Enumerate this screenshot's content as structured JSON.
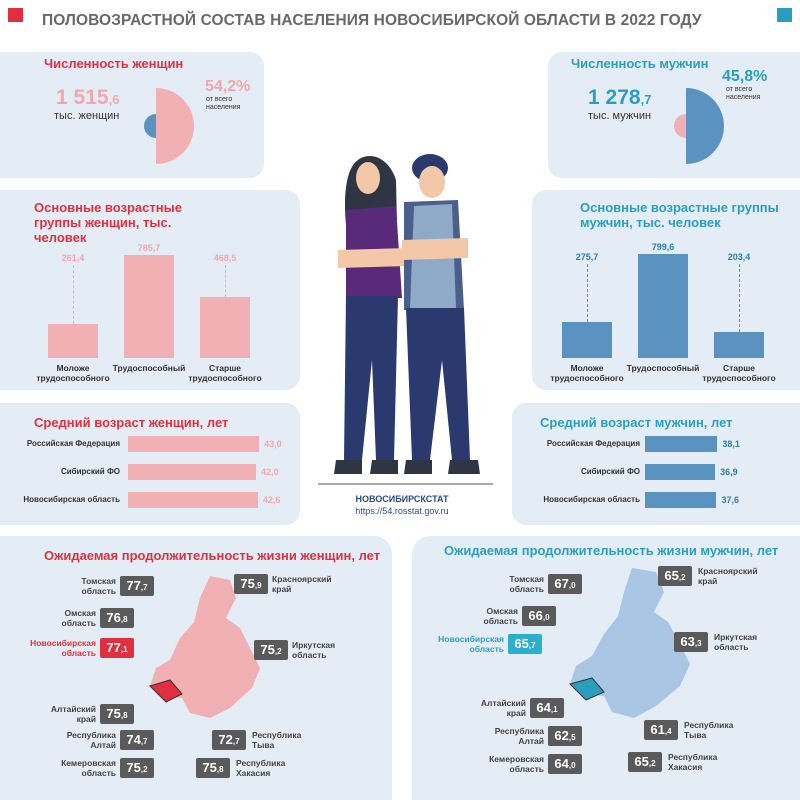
{
  "header": {
    "title": "ПОЛОВОЗРАСТНОЙ СОСТАВ НАСЕЛЕНИЯ НОВОСИБИРСКОЙ ОБЛАСТИ В 2022 ГОДУ",
    "colors": {
      "left": "#e0303f",
      "right": "#2a9fbd"
    }
  },
  "women_count": {
    "title": "Численность женщин",
    "value_main": "1 515",
    "value_dec": "6",
    "unit": "тыс. женщин",
    "percent_main": "54,2",
    "percent_sign": "%",
    "percent_note": "от всего населения"
  },
  "men_count": {
    "title": "Численность мужчин",
    "value_main": "1 278",
    "value_dec": "7",
    "unit": "тыс. мужчин",
    "percent_main": "45,8",
    "percent_sign": "%",
    "percent_note": "от всего населения"
  },
  "women_age_groups": {
    "title": "Основные возрастные группы женщин, тыс. человек",
    "chart_data": {
      "type": "bar",
      "categories": [
        "Моложе трудоспособного",
        "Трудоспособный",
        "Старше трудоспособного"
      ],
      "values": [
        261.4,
        785.7,
        468.5
      ],
      "value_labels": [
        "261,4",
        "785,7",
        "468,5"
      ],
      "color": "#f0b0b4"
    }
  },
  "men_age_groups": {
    "title": "Основные возрастные группы мужчин, тыс. человек",
    "chart_data": {
      "type": "bar",
      "categories": [
        "Моложе трудоспособного",
        "Трудоспособный",
        "Старше трудоспособного"
      ],
      "values": [
        275.7,
        799.6,
        203.4
      ],
      "value_labels": [
        "275,7",
        "799,6",
        "203,4"
      ],
      "color": "#5b93c0"
    }
  },
  "women_avg_age": {
    "title": "Средний возраст женщин, лет",
    "chart_data": {
      "type": "bar",
      "orientation": "horizontal",
      "categories": [
        "Российская Федерация",
        "Сибирский ФО",
        "Новосибирская область"
      ],
      "values": [
        43.0,
        42.0,
        42.6
      ],
      "value_labels": [
        "43,0",
        "42,0",
        "42,6"
      ],
      "color": "#f0b0b4"
    }
  },
  "men_avg_age": {
    "title": "Средний возраст мужчин, лет",
    "chart_data": {
      "type": "bar",
      "orientation": "horizontal",
      "categories": [
        "Российская Федерация",
        "Сибирский ФО",
        "Новосибирская область"
      ],
      "values": [
        38.1,
        36.9,
        37.6
      ],
      "value_labels": [
        "38,1",
        "36,9",
        "37,6"
      ],
      "color": "#5b93c0"
    }
  },
  "source": {
    "name": "НОВОСИБИРСКСТАТ",
    "url": "https://54.rosstat.gov.ru"
  },
  "women_life": {
    "title": "Ожидаемая продолжительность жизни женщин, лет",
    "regions": [
      {
        "name": "Томская область",
        "value": "77,7"
      },
      {
        "name": "Омская область",
        "value": "76,8"
      },
      {
        "name": "Новосибирская область",
        "value": "77,1"
      },
      {
        "name": "Алтайский край",
        "value": "75,8"
      },
      {
        "name": "Республика Алтай",
        "value": "74,7"
      },
      {
        "name": "Кемеровская область",
        "value": "75,2"
      },
      {
        "name": "Красноярский край",
        "value": "75,9"
      },
      {
        "name": "Иркутская область",
        "value": "75,2"
      },
      {
        "name": "Республика Тыва",
        "value": "72,7"
      },
      {
        "name": "Республика Хакасия",
        "value": "75,8"
      }
    ]
  },
  "men_life": {
    "title": "Ожидаемая продолжительность жизни мужчин, лет",
    "regions": [
      {
        "name": "Томская область",
        "value": "67,0"
      },
      {
        "name": "Омская область",
        "value": "66,0"
      },
      {
        "name": "Новосибирская область",
        "value": "65,7"
      },
      {
        "name": "Алтайский край",
        "value": "64,1"
      },
      {
        "name": "Республика Алтай",
        "value": "62,5"
      },
      {
        "name": "Кемеровская область",
        "value": "64,0"
      },
      {
        "name": "Красноярский край",
        "value": "65,2"
      },
      {
        "name": "Иркутская область",
        "value": "63,3"
      },
      {
        "name": "Республика Тыва",
        "value": "61,4"
      },
      {
        "name": "Республика Хакасия",
        "value": "65,2"
      }
    ]
  }
}
